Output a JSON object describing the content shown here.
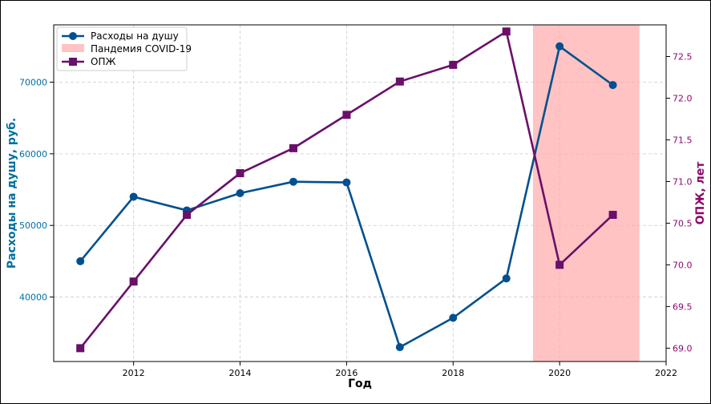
{
  "chart_data": {
    "type": "line",
    "xlabel": "Год",
    "y_left_label": "Расходы на душу, руб.",
    "y_right_label": "ОПЖ, лет",
    "xlim": [
      2010.5,
      2022
    ],
    "x_ticks": [
      2012,
      2014,
      2016,
      2018,
      2020,
      2022
    ],
    "y_left_lim": [
      31000,
      78000
    ],
    "y_left_ticks": [
      40000,
      50000,
      60000,
      70000
    ],
    "y_right_lim": [
      68.84,
      72.88
    ],
    "y_right_ticks": [
      "69.0",
      "69.5",
      "70.0",
      "70.5",
      "71.0",
      "71.5",
      "72.0",
      "72.5"
    ],
    "grid": true,
    "legend_position": "top-left",
    "shaded_region": {
      "label": "Пандемия COVID-19",
      "x_start": 2019.5,
      "x_end": 2021.5,
      "color": "#ffaaaa"
    },
    "x": [
      2011,
      2012,
      2013,
      2014,
      2015,
      2016,
      2017,
      2018,
      2019,
      2020,
      2021
    ],
    "series": [
      {
        "name": "Расходы на душу",
        "axis": "left",
        "marker": "circle",
        "color": "#00508f",
        "values": [
          45000,
          54000,
          52100,
          54500,
          56100,
          56000,
          33000,
          37100,
          42600,
          75000,
          69600
        ]
      },
      {
        "name": "ОПЖ",
        "axis": "right",
        "marker": "square",
        "color": "#6a0f6a",
        "values": [
          69.0,
          69.8,
          70.6,
          71.1,
          71.4,
          71.8,
          72.2,
          72.4,
          72.8,
          70.0,
          70.6
        ]
      }
    ],
    "colors": {
      "left_axis": "#0070a0",
      "right_axis": "#8b0a6b",
      "grid": "#cccccc"
    }
  }
}
